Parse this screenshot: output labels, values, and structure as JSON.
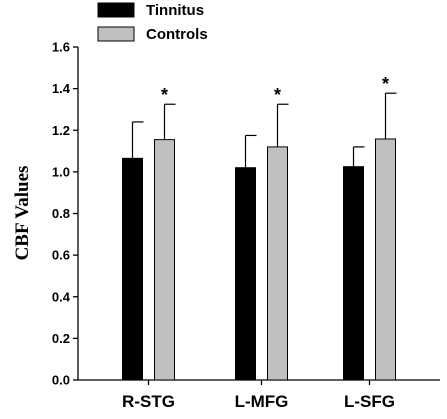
{
  "chart_data": {
    "type": "bar",
    "ylabel": "CBF Values",
    "xlabel": "",
    "ylim": [
      0,
      1.6
    ],
    "yticks": [
      "0.0",
      "0.2",
      "0.4",
      "0.6",
      "0.8",
      "1.0",
      "1.2",
      "1.4",
      "1.6"
    ],
    "categories": [
      "R-STG",
      "L-MFG",
      "L-SFG"
    ],
    "series": [
      {
        "name": "Tinnitus",
        "color": "#000000",
        "values": [
          1.065,
          1.02,
          1.025
        ],
        "errors": [
          0.175,
          0.155,
          0.095
        ]
      },
      {
        "name": "Controls",
        "color": "#c0c0c0",
        "values": [
          1.155,
          1.12,
          1.158
        ],
        "errors": [
          0.17,
          0.205,
          0.22
        ]
      }
    ],
    "annotations": [
      "*",
      "*",
      "*"
    ],
    "legend_position": "top-left",
    "grid": false
  }
}
